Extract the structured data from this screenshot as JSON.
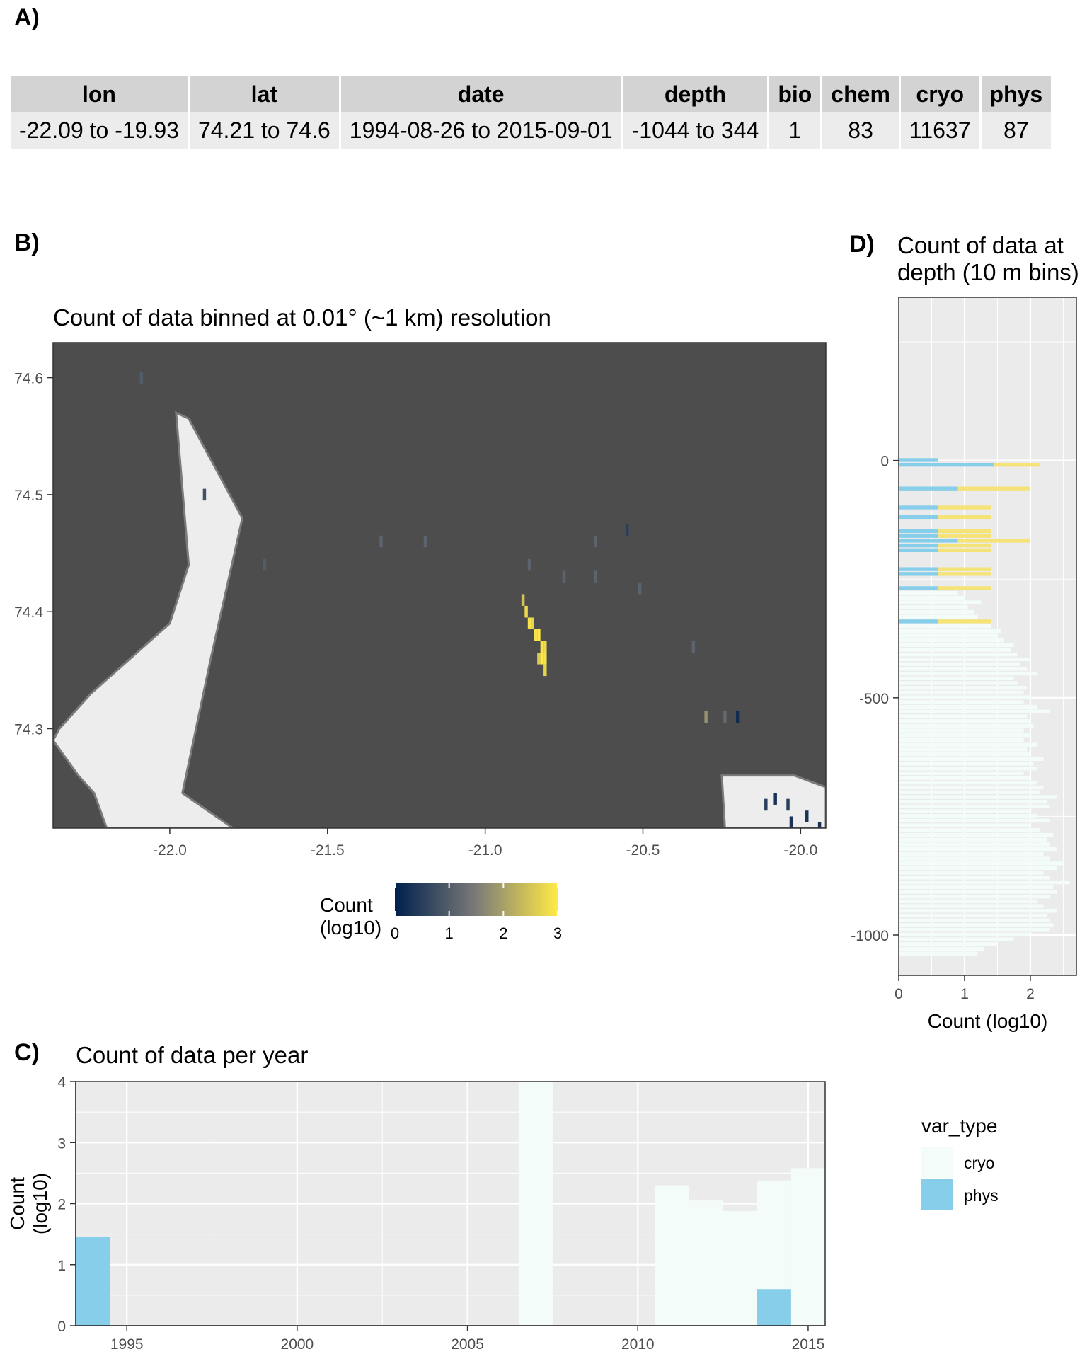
{
  "panel_labels": {
    "a": "A)",
    "b": "B)",
    "c": "C)",
    "d": "D)"
  },
  "table": {
    "headers": [
      "lon",
      "lat",
      "date",
      "depth",
      "bio",
      "chem",
      "cryo",
      "phys"
    ],
    "values": [
      "-22.09 to -19.93",
      "74.21 to 74.6",
      "1994-08-26 to 2015-09-01",
      "-1044 to 344",
      "1",
      "83",
      "11637",
      "87"
    ]
  },
  "colors": {
    "panel_bg": "#ebebeb",
    "ocean": "#4d4d4d",
    "land": "#ededed",
    "cryo": "#f3fcf8",
    "phys": "#87ceeb",
    "chem": "#f5e378",
    "cmap_low": "#00204d",
    "cmap_mid": "#7c7b78",
    "cmap_high": "#ffea46"
  },
  "chart_data": [
    {
      "id": "map",
      "type": "heatmap",
      "title": "Count of data binned at 0.01° (~1 km) resolution",
      "xlim": [
        -22.37,
        -19.92
      ],
      "ylim": [
        74.215,
        74.63
      ],
      "x_ticks": [
        -22.0,
        -21.5,
        -21.0,
        -20.5,
        -20.0
      ],
      "x_tick_labels": [
        "-22.0",
        "-21.5",
        "-21.0",
        "-20.5",
        "-20.0"
      ],
      "y_ticks": [
        74.3,
        74.4,
        74.5,
        74.6
      ],
      "y_tick_labels": [
        "74.3",
        "74.4",
        "74.5",
        "74.6"
      ],
      "legend": {
        "title": "Count\n(log10)",
        "ticks": [
          0,
          1,
          2,
          3
        ],
        "tick_labels": [
          "0",
          "1",
          "2",
          "3"
        ],
        "placement": "bottom"
      },
      "cells": [
        {
          "lon": -22.09,
          "lat": 74.6,
          "v": 1.0
        },
        {
          "lon": -21.89,
          "lat": 74.5,
          "v": 0.8
        },
        {
          "lon": -21.7,
          "lat": 74.44,
          "v": 1.0
        },
        {
          "lon": -21.33,
          "lat": 74.46,
          "v": 1.1
        },
        {
          "lon": -21.19,
          "lat": 74.46,
          "v": 1.1
        },
        {
          "lon": -20.86,
          "lat": 74.44,
          "v": 1.1
        },
        {
          "lon": -20.75,
          "lat": 74.43,
          "v": 1.1
        },
        {
          "lon": -20.65,
          "lat": 74.46,
          "v": 1.1
        },
        {
          "lon": -20.65,
          "lat": 74.43,
          "v": 1.1
        },
        {
          "lon": -20.55,
          "lat": 74.47,
          "v": 0.5
        },
        {
          "lon": -20.51,
          "lat": 74.42,
          "v": 1.1
        },
        {
          "lon": -20.34,
          "lat": 74.37,
          "v": 1.1
        },
        {
          "lon": -20.3,
          "lat": 74.31,
          "v": 1.8
        },
        {
          "lon": -20.24,
          "lat": 74.31,
          "v": 1.2
        },
        {
          "lon": -20.2,
          "lat": 74.31,
          "v": 0.2
        },
        {
          "lon": -20.11,
          "lat": 74.235,
          "v": 0.5
        },
        {
          "lon": -20.08,
          "lat": 74.24,
          "v": 0.3
        },
        {
          "lon": -20.04,
          "lat": 74.235,
          "v": 0.5
        },
        {
          "lon": -20.03,
          "lat": 74.22,
          "v": 0.3
        },
        {
          "lon": -19.98,
          "lat": 74.225,
          "v": 0.3
        },
        {
          "lon": -19.94,
          "lat": 74.215,
          "v": 0.3
        },
        {
          "lon": -20.88,
          "lat": 74.41,
          "v": 2.5
        },
        {
          "lon": -20.87,
          "lat": 74.4,
          "v": 2.8
        },
        {
          "lon": -20.86,
          "lat": 74.39,
          "v": 2.9
        },
        {
          "lon": -20.85,
          "lat": 74.39,
          "v": 2.7
        },
        {
          "lon": -20.84,
          "lat": 74.38,
          "v": 2.9
        },
        {
          "lon": -20.83,
          "lat": 74.38,
          "v": 3.0
        },
        {
          "lon": -20.82,
          "lat": 74.37,
          "v": 2.9
        },
        {
          "lon": -20.81,
          "lat": 74.37,
          "v": 2.8
        },
        {
          "lon": -20.83,
          "lat": 74.36,
          "v": 2.6
        },
        {
          "lon": -20.82,
          "lat": 74.36,
          "v": 3.0
        },
        {
          "lon": -20.81,
          "lat": 74.36,
          "v": 2.9
        },
        {
          "lon": -20.81,
          "lat": 74.35,
          "v": 2.7
        }
      ],
      "land": [
        {
          "name": "west-land",
          "points": [
            [
              -22.37,
              74.29
            ],
            [
              -22.35,
              74.3
            ],
            [
              -22.25,
              74.33
            ],
            [
              -22.0,
              74.39
            ],
            [
              -21.94,
              74.44
            ],
            [
              -21.98,
              74.57
            ],
            [
              -21.94,
              74.565
            ],
            [
              -21.77,
              74.48
            ],
            [
              -21.87,
              74.36
            ],
            [
              -21.96,
              74.245
            ],
            [
              -21.8,
              74.215
            ],
            [
              -22.2,
              74.215
            ],
            [
              -22.24,
              74.245
            ],
            [
              -22.29,
              74.26
            ]
          ]
        },
        {
          "name": "east-land",
          "points": [
            [
              -20.24,
              74.215
            ],
            [
              -20.25,
              74.26
            ],
            [
              -20.02,
              74.26
            ],
            [
              -19.92,
              74.25
            ],
            [
              -19.92,
              74.215
            ]
          ]
        }
      ]
    },
    {
      "id": "year",
      "type": "bar",
      "title": "Count of data per year",
      "ylabel": "Count\n(log10)",
      "xlim": [
        1993.5,
        2015.5
      ],
      "ylim": [
        0,
        4
      ],
      "x_ticks": [
        1995,
        2000,
        2005,
        2010,
        2015
      ],
      "x_tick_labels": [
        "1995",
        "2000",
        "2005",
        "2010",
        "2015"
      ],
      "y_ticks": [
        0,
        1,
        2,
        3,
        4
      ],
      "y_tick_labels": [
        "0",
        "1",
        "2",
        "3",
        "4"
      ],
      "series": [
        {
          "name": "cryo",
          "x": [
            2007,
            2011,
            2012,
            2013,
            2014,
            2015
          ],
          "values": [
            4.0,
            2.3,
            2.05,
            1.88,
            2.38,
            2.58
          ]
        },
        {
          "name": "phys",
          "x": [
            1994,
            2014
          ],
          "values": [
            1.45,
            0.6
          ]
        }
      ]
    },
    {
      "id": "depth",
      "type": "bar",
      "orientation": "horizontal",
      "title": "Count of data at depth (10 m bins)",
      "xlabel": "Count (log10)",
      "xlim": [
        0,
        2.7
      ],
      "ylim": [
        -1085,
        344
      ],
      "x_ticks": [
        0,
        1,
        2
      ],
      "x_tick_labels": [
        "0",
        "1",
        "2"
      ],
      "y_ticks": [
        -1000,
        -500,
        0
      ],
      "y_tick_labels": [
        "-1000",
        "-500",
        "0"
      ],
      "series": [
        {
          "name": "cryo",
          "y": [
            -1040,
            -1030,
            -1020,
            -1010,
            -1000,
            -990,
            -980,
            -970,
            -960,
            -950,
            -940,
            -930,
            -920,
            -910,
            -900,
            -890,
            -880,
            -870,
            -860,
            -850,
            -840,
            -830,
            -820,
            -810,
            -800,
            -790,
            -780,
            -770,
            -760,
            -750,
            -740,
            -730,
            -720,
            -710,
            -700,
            -690,
            -680,
            -670,
            -660,
            -650,
            -640,
            -630,
            -620,
            -610,
            -600,
            -590,
            -580,
            -570,
            -560,
            -550,
            -540,
            -530,
            -520,
            -510,
            -500,
            -490,
            -480,
            -470,
            -460,
            -450,
            -440,
            -430,
            -420,
            -410,
            -400,
            -390,
            -380,
            -370,
            -360,
            -350,
            -340,
            -330,
            -320,
            -310,
            -300,
            -290,
            -280
          ],
          "values": [
            1.2,
            1.3,
            1.5,
            1.75,
            2.0,
            2.3,
            2.35,
            2.3,
            2.25,
            2.4,
            2.2,
            2.1,
            2.3,
            2.4,
            2.35,
            2.6,
            2.3,
            2.2,
            2.4,
            2.5,
            2.3,
            2.2,
            2.4,
            2.3,
            2.25,
            2.35,
            2.15,
            2.0,
            2.3,
            2.1,
            2.0,
            2.3,
            2.25,
            2.4,
            2.15,
            2.2,
            2.1,
            2.0,
            1.9,
            2.1,
            2.05,
            2.2,
            2.0,
            1.95,
            2.1,
            1.9,
            2.0,
            1.9,
            2.05,
            2.0,
            1.95,
            2.3,
            2.1,
            1.9,
            2.05,
            1.9,
            1.95,
            1.8,
            1.75,
            2.1,
            1.95,
            1.85,
            2.0,
            1.8,
            1.7,
            1.75,
            1.6,
            1.5,
            1.55,
            1.4,
            1.3,
            1.2,
            1.15,
            1.05,
            1.25,
            1.0,
            0.9
          ]
        },
        {
          "name": "phys",
          "y": [
            0,
            -10,
            -60,
            -100,
            -120,
            -150,
            -160,
            -170,
            -180,
            -190,
            -230,
            -240,
            -270,
            -340
          ],
          "values": [
            0.6,
            1.45,
            0.9,
            0.6,
            0.6,
            0.6,
            0.6,
            0.9,
            0.6,
            0.6,
            0.6,
            0.6,
            0.6,
            0.6
          ]
        },
        {
          "name": "chem",
          "y": [
            -10,
            -60,
            -100,
            -120,
            -150,
            -160,
            -170,
            -180,
            -190,
            -230,
            -240,
            -270,
            -340
          ],
          "values": [
            2.15,
            2.0,
            1.4,
            1.4,
            1.4,
            1.4,
            2.0,
            1.4,
            1.4,
            1.4,
            1.4,
            1.4,
            1.4
          ]
        }
      ]
    }
  ],
  "var_legend": {
    "title": "var_type",
    "items": [
      {
        "label": "cryo",
        "color": "#f3fcf8"
      },
      {
        "label": "phys",
        "color": "#87ceeb"
      }
    ]
  }
}
